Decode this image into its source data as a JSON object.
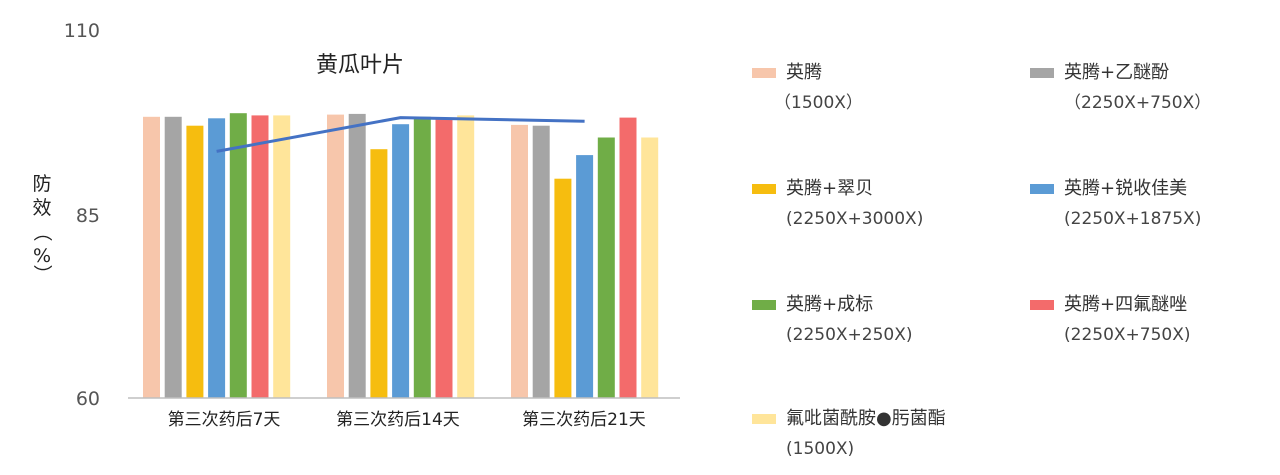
{
  "chart_data": {
    "type": "bar",
    "title": "黄瓜叶片",
    "ylabel_chars": [
      "防",
      "效",
      "（",
      "%",
      "）"
    ],
    "ylim": [
      60,
      110
    ],
    "yticks": [
      "60",
      "85",
      "110"
    ],
    "categories": [
      "第三次药后7天",
      "第三次药后14天",
      "第三次药后21天"
    ],
    "series": [
      {
        "name": "英腾",
        "dose": "（1500X）",
        "color": "#f7c6ab",
        "values": [
          98.2,
          98.5,
          97.1
        ]
      },
      {
        "name": "英腾+乙醚酚",
        "dose": "（2250X+750X）",
        "color": "#a5a5a5",
        "values": [
          98.2,
          98.6,
          97.0
        ]
      },
      {
        "name": "英腾+翠贝",
        "dose": "(2250X+3000X)",
        "color": "#f6bd0f",
        "values": [
          97.0,
          93.8,
          89.8
        ]
      },
      {
        "name": "英腾+锐收佳美",
        "dose": "(2250X+1875X)",
        "color": "#5b9bd5",
        "values": [
          98.0,
          97.2,
          93.0
        ]
      },
      {
        "name": "英腾+成标",
        "dose": "(2250X+250X)",
        "color": "#70ad47",
        "values": [
          98.7,
          98.2,
          95.4
        ]
      },
      {
        "name": "英腾+四氟醚唑",
        "dose": "(2250X+750X)",
        "color": "#f36b6b",
        "values": [
          98.4,
          98.1,
          98.1
        ]
      },
      {
        "name": "氟吡菌酰胺●肟菌酯",
        "dose": "(1500X)",
        "color": "#ffe59a",
        "values": [
          98.4,
          98.4,
          95.4
        ]
      }
    ],
    "trend_line": {
      "color": "#4472c4",
      "values": [
        93.5,
        98.1,
        97.6
      ]
    },
    "grid": false,
    "legend_position": "right"
  }
}
